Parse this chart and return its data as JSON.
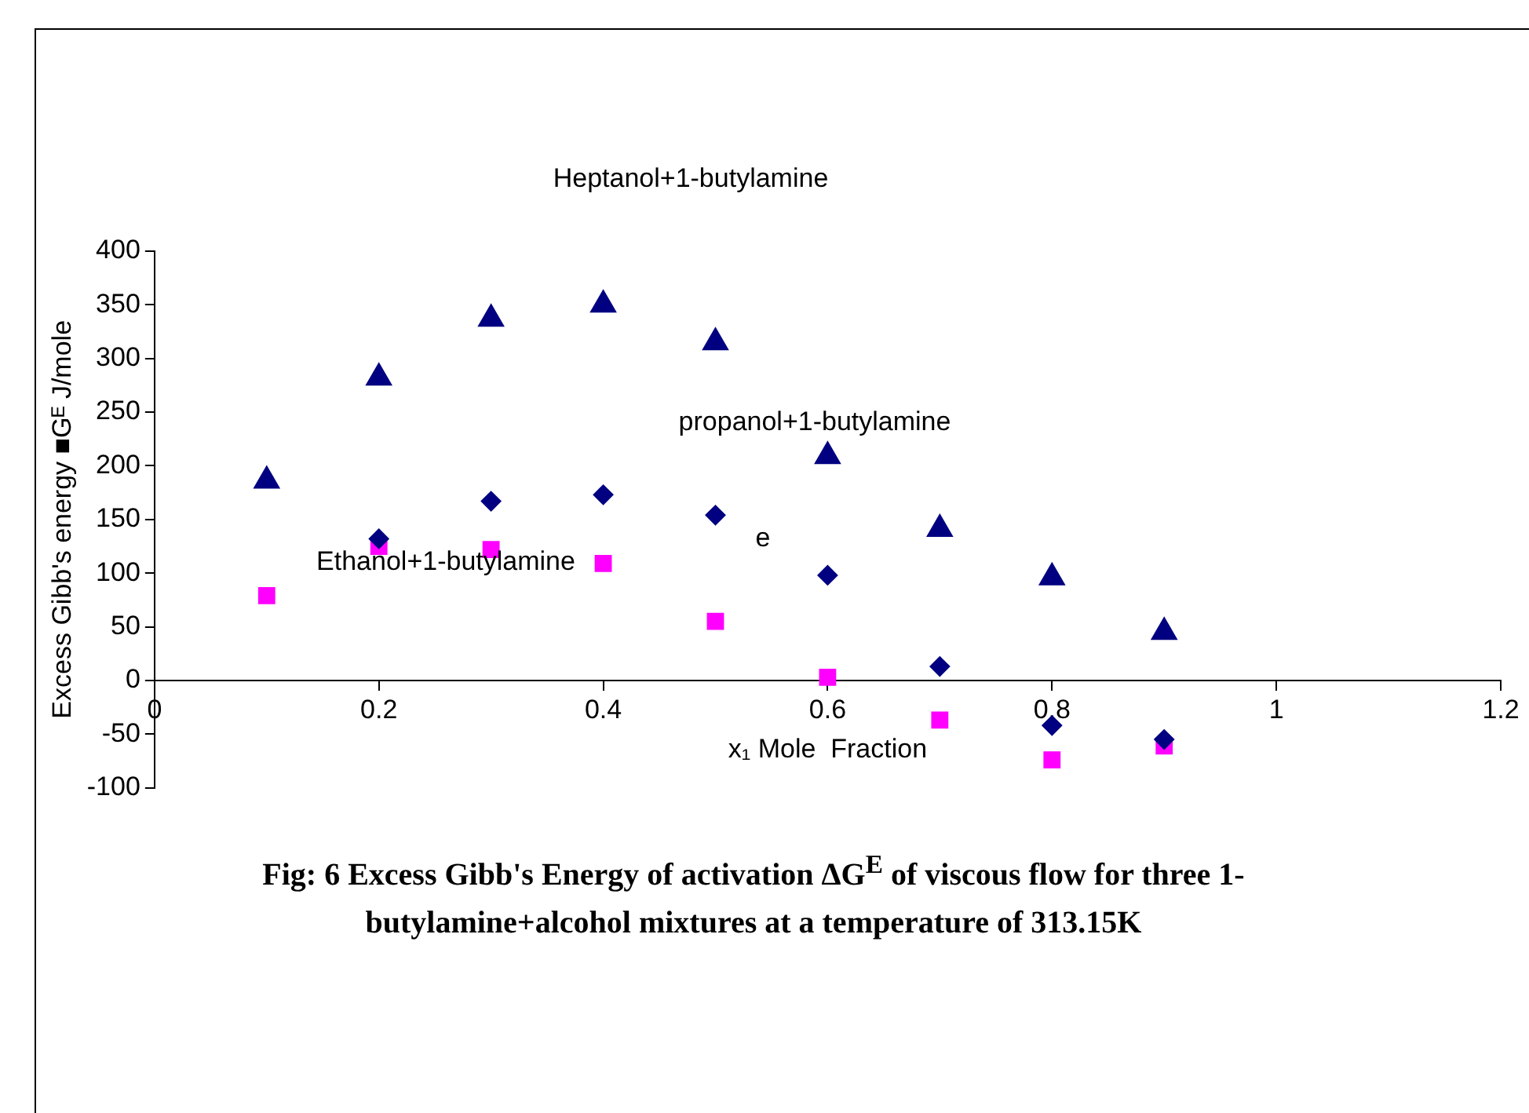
{
  "chart_data": {
    "type": "scatter",
    "xlabel": "x₁ Mole  Fraction",
    "ylabel": "Excess Gibb's energy ■Gᴱ J/mole",
    "xlim": [
      0,
      1.2
    ],
    "xticks": [
      0,
      0.2,
      0.4,
      0.6,
      0.8,
      1,
      1.2
    ],
    "ylim": [
      -100,
      400
    ],
    "yticks": [
      -100,
      -50,
      0,
      50,
      100,
      150,
      200,
      250,
      300,
      350,
      400
    ],
    "grid": false,
    "legend": false,
    "x": [
      0.1,
      0.2,
      0.3,
      0.4,
      0.5,
      0.6,
      0.7,
      0.8,
      0.9
    ],
    "series": [
      {
        "color": "#000080",
        "marker": "triangle",
        "values": [
          186,
          282,
          337,
          350,
          315,
          209,
          141,
          96,
          45
        ]
      },
      {
        "color": "#000080",
        "marker": "diamond",
        "values": [
          null,
          132,
          167,
          173,
          154,
          98,
          13,
          -42,
          -55
        ]
      },
      {
        "color": "#ff00ff",
        "marker": "square",
        "values": [
          79,
          125,
          122,
          109,
          55,
          3,
          -37,
          -74,
          -61
        ]
      }
    ],
    "annotations": [
      "Heptanol+1-butylamine",
      "propanol+1-butylamine",
      "Ethanol+1-butylamine",
      "e",
      "Fig: 6 Excess  Gibb's Energy of activation ΔG$^{E}$ of viscous flow for three 1-butylamine+alcohol mixtures at  a temperature of 313.15K"
    ]
  }
}
